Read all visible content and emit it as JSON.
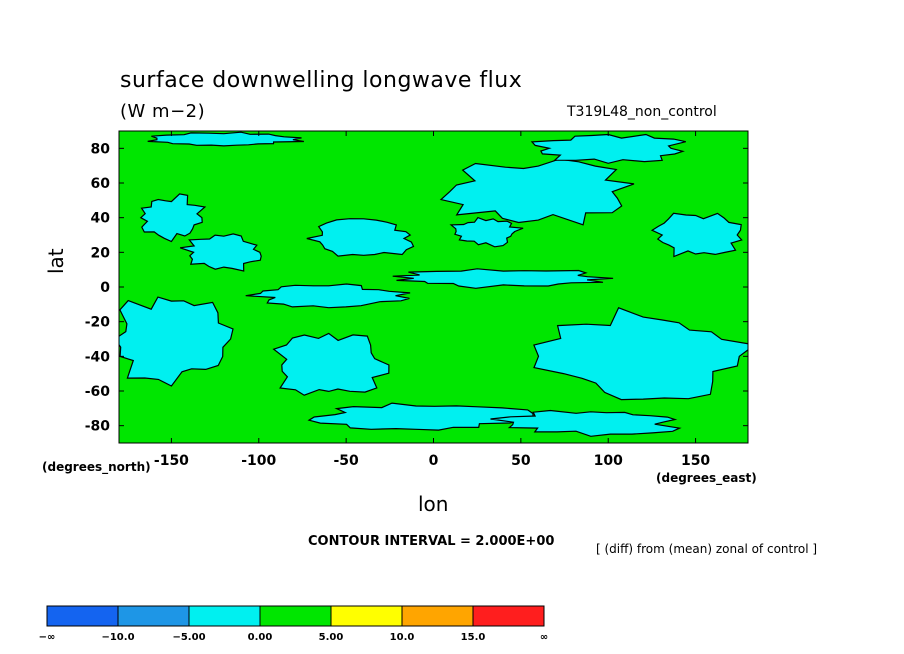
{
  "chart_data": {
    "type": "heatmap",
    "title": "surface downwelling longwave flux",
    "units": "(W m−2)",
    "run_label": "T319L48_non_control",
    "xlabel": "lon",
    "ylabel": "lat",
    "x_unit_note": "(degrees_east)",
    "y_unit_note": "(degrees_north)",
    "x_ticks": [
      -150,
      -100,
      -50,
      0,
      50,
      100,
      150
    ],
    "y_ticks": [
      80,
      60,
      40,
      20,
      0,
      -20,
      -40,
      -60,
      -80
    ],
    "xlim": [
      -180,
      180
    ],
    "ylim": [
      -90,
      90
    ],
    "contour_interval": "CONTOUR INTERVAL = 2.000E+00",
    "note": "[ (diff) from (mean) zonal of control ]",
    "colorbar": {
      "labels": [
        "−∞",
        "−10.0",
        "−5.00",
        "0.00",
        "5.00",
        "10.0",
        "15.0",
        "∞"
      ],
      "colors": [
        "#1464f0",
        "#1e96e6",
        "#00f0f0",
        "#00e600",
        "#ffff00",
        "#ffa500",
        "#ff1e1e"
      ]
    },
    "dominant_classes": [
      "0.00 to 5.00",
      "-5.00 to 0.00"
    ],
    "regions_cyan": [
      {
        "lon": -150,
        "lat": 40,
        "rlon": 18,
        "rlat": 12
      },
      {
        "lon": -120,
        "lat": 20,
        "rlon": 22,
        "rlat": 10
      },
      {
        "lon": -40,
        "lat": 28,
        "rlon": 30,
        "rlat": 10
      },
      {
        "lon": 60,
        "lat": 55,
        "rlon": 50,
        "rlat": 18
      },
      {
        "lon": 30,
        "lat": 32,
        "rlon": 20,
        "rlat": 8
      },
      {
        "lon": 150,
        "lat": 30,
        "rlon": 25,
        "rlat": 12
      },
      {
        "lon": -60,
        "lat": -5,
        "rlon": 40,
        "rlat": 6
      },
      {
        "lon": 40,
        "lat": 5,
        "rlon": 60,
        "rlat": 5
      },
      {
        "lon": -150,
        "lat": -30,
        "rlon": 35,
        "rlat": 25
      },
      {
        "lon": -60,
        "lat": -45,
        "rlon": 30,
        "rlat": 18
      },
      {
        "lon": 120,
        "lat": -40,
        "rlon": 55,
        "rlat": 25
      },
      {
        "lon": -10,
        "lat": -75,
        "rlon": 60,
        "rlat": 8
      },
      {
        "lon": 90,
        "lat": -78,
        "rlon": 50,
        "rlat": 7
      },
      {
        "lon": -120,
        "lat": 85,
        "rlon": 40,
        "rlat": 4
      },
      {
        "lon": 100,
        "lat": 80,
        "rlon": 45,
        "rlat": 8
      }
    ]
  }
}
